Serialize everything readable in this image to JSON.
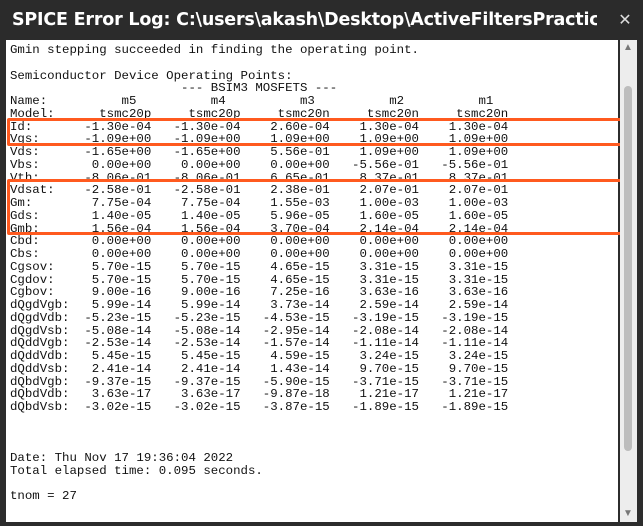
{
  "window": {
    "title": "SPICE Error Log: C:\\users\\akash\\Desktop\\ActiveFiltersPractice\\Pr..."
  },
  "log_lines": [
    "Gmin stepping succeeded in finding the operating point.",
    "",
    "Semiconductor Device Operating Points:",
    "                       --- BSIM3 MOSFETS ---",
    "Name:          m5          m4          m3          m2          m1",
    "Model:      tsmc20p     tsmc20p     tsmc20n     tsmc20n     tsmc20n",
    "Id:       -1.30e-04   -1.30e-04    2.60e-04    1.30e-04    1.30e-04",
    "Vgs:      -1.09e+00   -1.09e+00    1.09e+00    1.09e+00    1.09e+00",
    "Vds:      -1.65e+00   -1.65e+00    5.56e-01    1.09e+00    1.09e+00",
    "Vbs:       0.00e+00    0.00e+00    0.00e+00   -5.56e-01   -5.56e-01",
    "Vth:      -8.06e-01   -8.06e-01    6.65e-01    8.37e-01    8.37e-01",
    "Vdsat:    -2.58e-01   -2.58e-01    2.38e-01    2.07e-01    2.07e-01",
    "Gm:        7.75e-04    7.75e-04    1.55e-03    1.00e-03    1.00e-03",
    "Gds:       1.40e-05    1.40e-05    5.96e-05    1.60e-05    1.60e-05",
    "Gmb:       1.56e-04    1.56e-04    3.70e-04    2.14e-04    2.14e-04",
    "Cbd:       0.00e+00    0.00e+00    0.00e+00    0.00e+00    0.00e+00",
    "Cbs:       0.00e+00    0.00e+00    0.00e+00    0.00e+00    0.00e+00",
    "Cgsov:     5.70e-15    5.70e-15    4.65e-15    3.31e-15    3.31e-15",
    "Cgdov:     5.70e-15    5.70e-15    4.65e-15    3.31e-15    3.31e-15",
    "Cgbov:     9.00e-16    9.00e-16    7.25e-16    3.63e-16    3.63e-16",
    "dQgdVgb:   5.99e-14    5.99e-14    3.73e-14    2.59e-14    2.59e-14",
    "dQgdVdb:  -5.23e-15   -5.23e-15   -4.53e-15   -3.19e-15   -3.19e-15",
    "dQgdVsb:  -5.08e-14   -5.08e-14   -2.95e-14   -2.08e-14   -2.08e-14",
    "dQddVgb:  -2.53e-14   -2.53e-14   -1.57e-14   -1.11e-14   -1.11e-14",
    "dQddVdb:   5.45e-15    5.45e-15    4.59e-15    3.24e-15    3.24e-15",
    "dQddVsb:   2.41e-14    2.41e-14    1.43e-14    9.70e-15    9.70e-15",
    "dQbdVgb:  -9.37e-15   -9.37e-15   -5.90e-15   -3.71e-15   -3.71e-15",
    "dQbdVdb:   3.63e-17    3.63e-17   -9.87e-18    1.21e-17    1.21e-17",
    "dQbdVsb:  -3.02e-15   -3.02e-15   -3.87e-15   -1.89e-15   -1.89e-15",
    "",
    "",
    "",
    "Date: Thu Nov 17 19:36:04 2022",
    "Total elapsed time: 0.095 seconds.",
    "",
    "tnom = 27"
  ],
  "colors": {
    "highlight": "#ff5a1f",
    "titlebar": "#2b2b2b",
    "background": "#ffffff"
  },
  "icons": {
    "close": "close-icon"
  }
}
